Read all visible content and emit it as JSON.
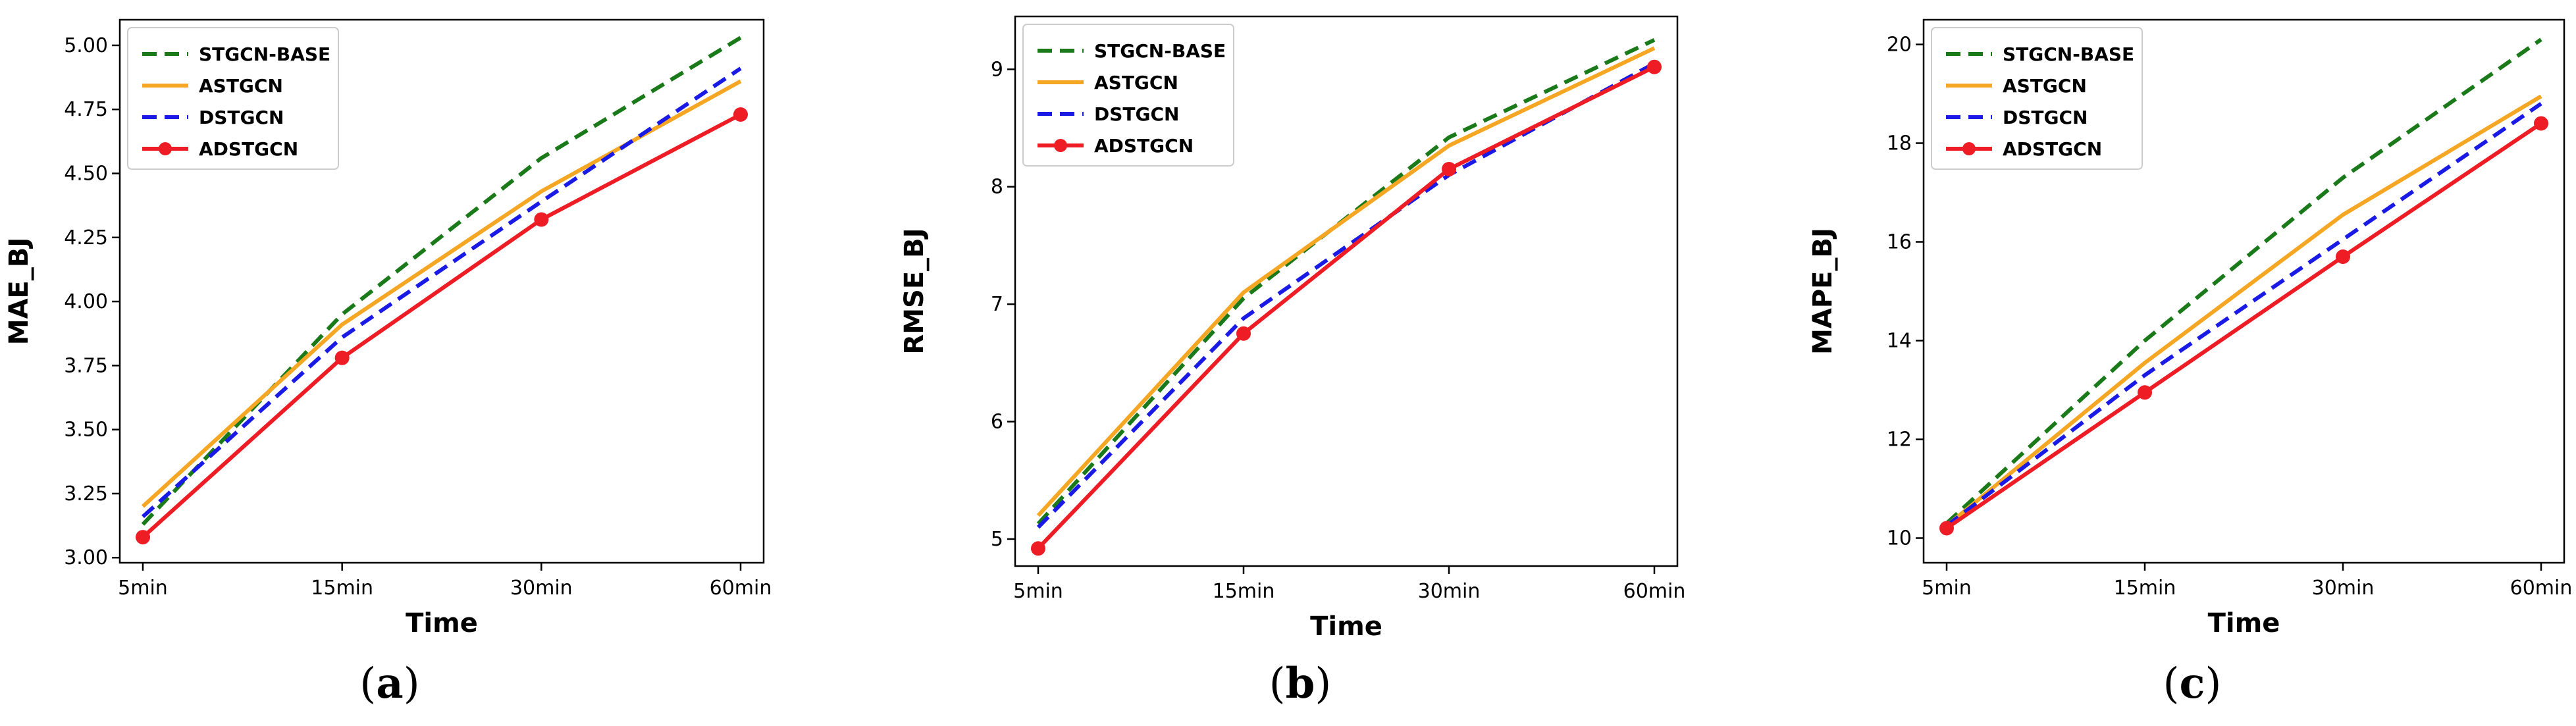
{
  "colors": {
    "STGCN-BASE": "#1a7a1a",
    "ASTGCN": "#f5a623",
    "DSTGCN": "#1a1ae6",
    "ADSTGCN": "#ee1c24"
  },
  "chart_data": [
    {
      "type": "line",
      "panel": "a",
      "caption_open": "(",
      "caption_letter": "a",
      "caption_close": ")",
      "categories": [
        "5min",
        "15min",
        "30min",
        "60min"
      ],
      "xlabel": "Time",
      "ylabel": "MAE_BJ",
      "ylim": [
        2.98,
        5.1
      ],
      "yticks": [
        3.0,
        3.25,
        3.5,
        3.75,
        4.0,
        4.25,
        4.5,
        4.75,
        5.0
      ],
      "ytick_labels": [
        "3.00",
        "3.25",
        "3.50",
        "3.75",
        "4.00",
        "4.25",
        "4.50",
        "4.75",
        "5.00"
      ],
      "legend_position": "top-left",
      "series": [
        {
          "name": "STGCN-BASE",
          "style": "dashed",
          "marker": false,
          "values": [
            3.13,
            3.95,
            4.56,
            5.03
          ]
        },
        {
          "name": "ASTGCN",
          "style": "solid",
          "marker": false,
          "values": [
            3.2,
            3.91,
            4.43,
            4.86
          ]
        },
        {
          "name": "DSTGCN",
          "style": "dashed",
          "marker": false,
          "values": [
            3.16,
            3.86,
            4.39,
            4.91
          ]
        },
        {
          "name": "ADSTGCN",
          "style": "solid",
          "marker": true,
          "values": [
            3.08,
            3.78,
            4.32,
            4.73
          ]
        }
      ]
    },
    {
      "type": "line",
      "panel": "b",
      "caption_open": "(",
      "caption_letter": "b",
      "caption_close": ")",
      "categories": [
        "5min",
        "15min",
        "30min",
        "60min"
      ],
      "xlabel": "Time",
      "ylabel": "RMSE_BJ",
      "ylim": [
        4.77,
        9.45
      ],
      "yticks": [
        5,
        6,
        7,
        8,
        9
      ],
      "ytick_labels": [
        "5",
        "6",
        "7",
        "8",
        "9"
      ],
      "legend_position": "top-left",
      "series": [
        {
          "name": "STGCN-BASE",
          "style": "dashed",
          "marker": false,
          "values": [
            5.13,
            7.05,
            8.42,
            9.25
          ]
        },
        {
          "name": "ASTGCN",
          "style": "solid",
          "marker": false,
          "values": [
            5.2,
            7.1,
            8.35,
            9.18
          ]
        },
        {
          "name": "DSTGCN",
          "style": "dashed",
          "marker": false,
          "values": [
            5.1,
            6.88,
            8.1,
            9.05
          ]
        },
        {
          "name": "ADSTGCN",
          "style": "solid",
          "marker": true,
          "values": [
            4.92,
            6.75,
            8.15,
            9.02
          ]
        }
      ]
    },
    {
      "type": "line",
      "panel": "c",
      "caption_open": "(",
      "caption_letter": "c",
      "caption_close": ")",
      "categories": [
        "5min",
        "15min",
        "30min",
        "60min"
      ],
      "xlabel": "Time",
      "ylabel": "MAPE_BJ",
      "ylim": [
        9.5,
        20.5
      ],
      "yticks": [
        10,
        12,
        14,
        16,
        18,
        20
      ],
      "ytick_labels": [
        "10",
        "12",
        "14",
        "16",
        "18",
        "20"
      ],
      "legend_position": "top-left",
      "series": [
        {
          "name": "STGCN-BASE",
          "style": "dashed",
          "marker": false,
          "values": [
            10.3,
            14.0,
            17.3,
            20.1
          ]
        },
        {
          "name": "ASTGCN",
          "style": "solid",
          "marker": false,
          "values": [
            10.25,
            13.55,
            16.55,
            18.95
          ]
        },
        {
          "name": "DSTGCN",
          "style": "dashed",
          "marker": false,
          "values": [
            10.25,
            13.3,
            16.05,
            18.8
          ]
        },
        {
          "name": "ADSTGCN",
          "style": "solid",
          "marker": true,
          "values": [
            10.2,
            12.95,
            15.7,
            18.4
          ]
        }
      ]
    }
  ]
}
